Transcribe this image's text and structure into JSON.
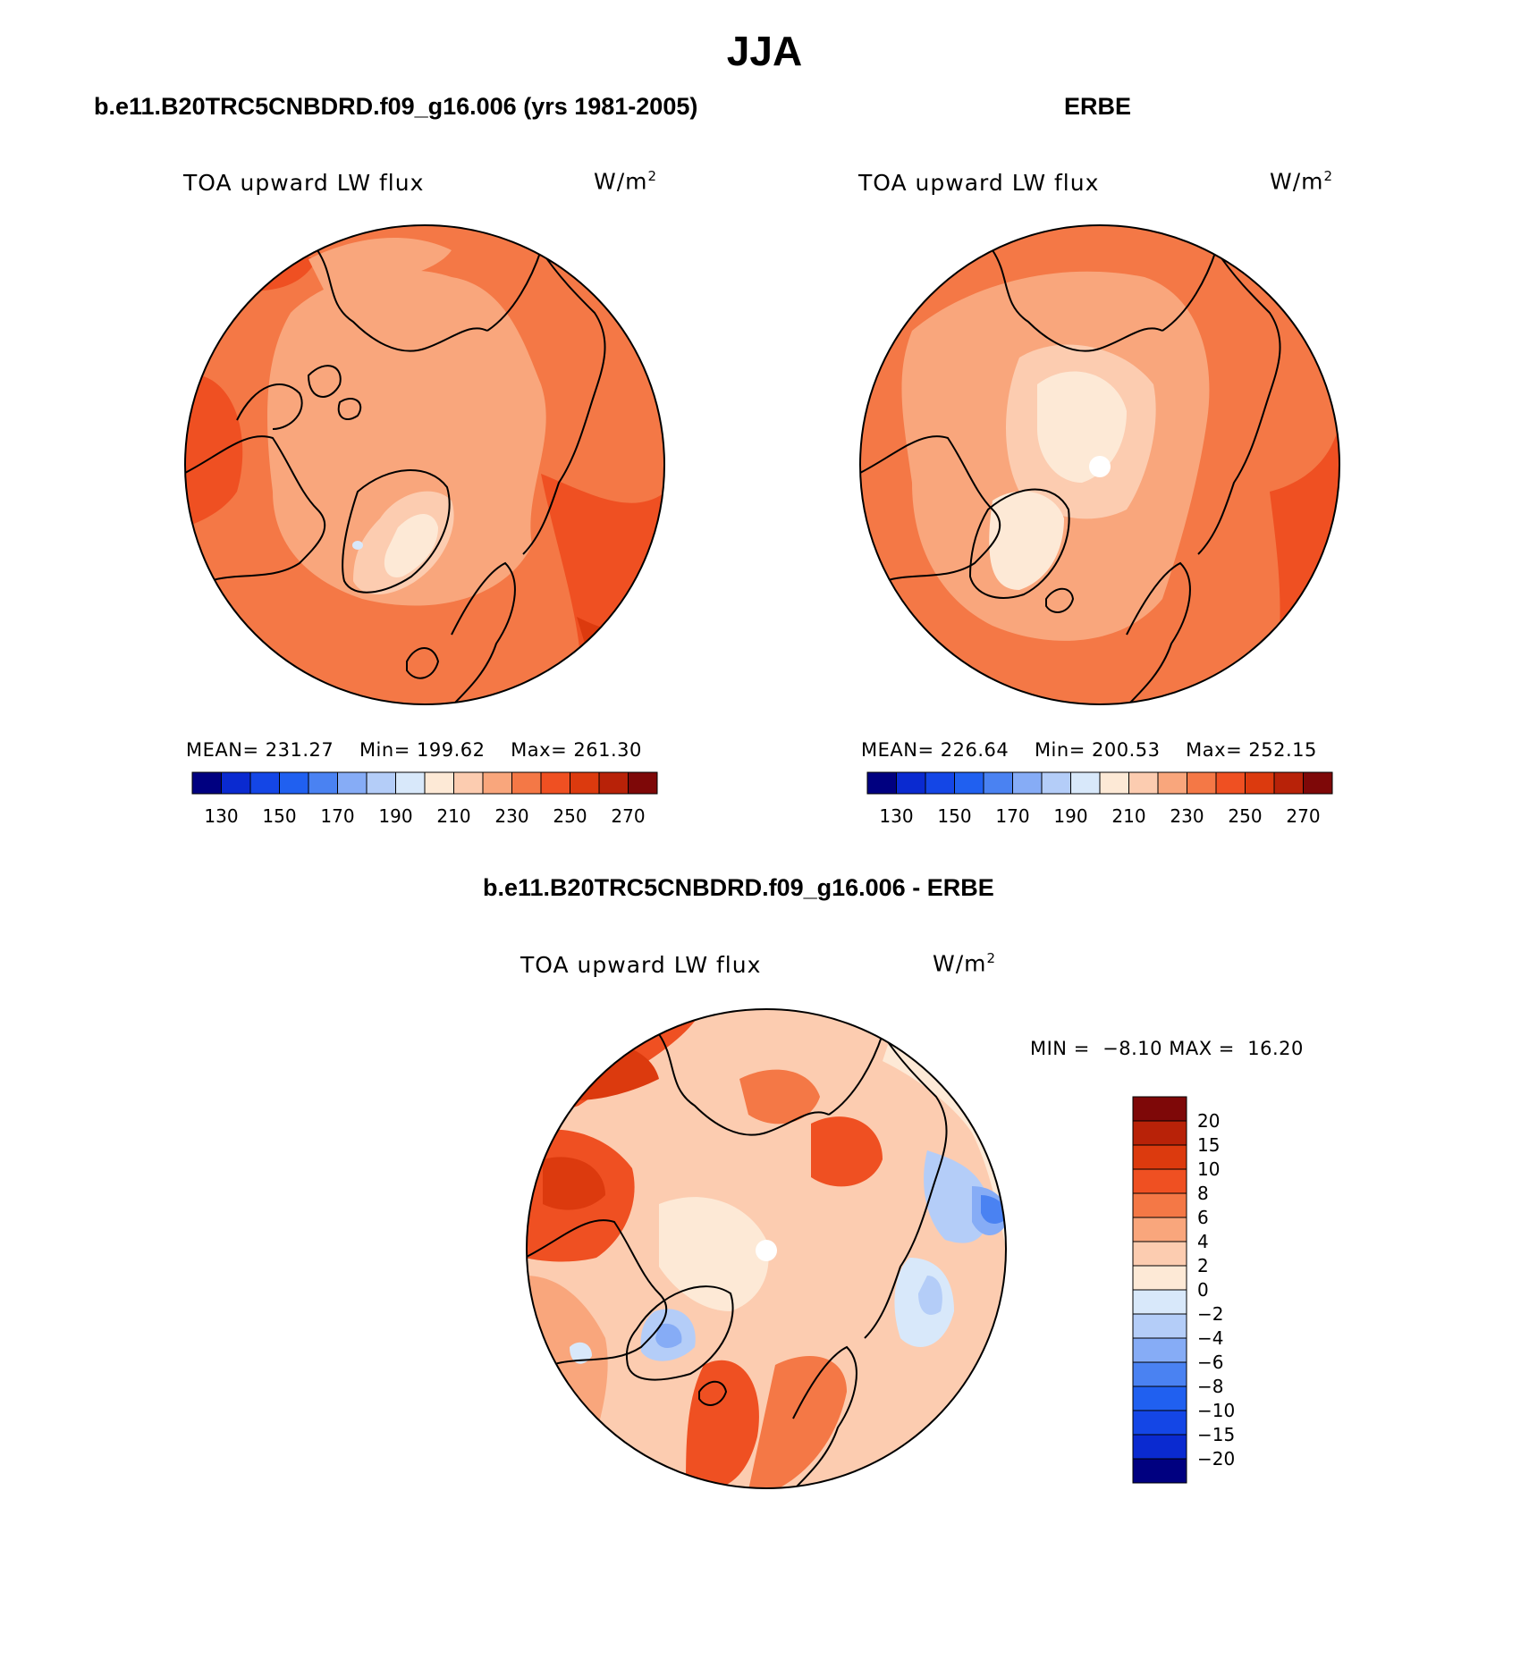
{
  "title": "JJA",
  "palette": [
    "#000080",
    "#0a2ad0",
    "#1446e6",
    "#2060f0",
    "#4a82f2",
    "#86acf6",
    "#b4cdf8",
    "#d8e8fa",
    "#fde9d6",
    "#fcccb0",
    "#f9a67c",
    "#f47846",
    "#ef5022",
    "#dc3a0e",
    "#b82208",
    "#7e0808"
  ],
  "panels": [
    {
      "title": "b.e11.B20TRC5CNBDRD.f09_g16.006 (yrs 1981-2005)",
      "variable_label": "TOA upward LW flux",
      "units": "W/m",
      "units_sup": "2",
      "stats": {
        "mean_label": "MEAN=",
        "mean": "231.27",
        "min_label": "Min=",
        "min": "199.62",
        "max_label": "Max=",
        "max": "261.30"
      },
      "colorbar_ticks": [
        "130",
        "150",
        "170",
        "190",
        "210",
        "230",
        "250",
        "270"
      ]
    },
    {
      "title": "ERBE",
      "variable_label": "TOA upward LW flux",
      "units": "W/m",
      "units_sup": "2",
      "stats": {
        "mean_label": "MEAN=",
        "mean": "226.64",
        "min_label": "Min=",
        "min": "200.53",
        "max_label": "Max=",
        "max": "252.15"
      },
      "colorbar_ticks": [
        "130",
        "150",
        "170",
        "190",
        "210",
        "230",
        "250",
        "270"
      ]
    }
  ],
  "diff": {
    "title": "b.e11.B20TRC5CNBDRD.f09_g16.006 - ERBE",
    "variable_label": "TOA upward LW flux",
    "units": "W/m",
    "units_sup": "2",
    "min_label": "MIN =",
    "min": "−8.10",
    "max_label": "MAX =",
    "max": "16.20",
    "colorbar_ticks": [
      "20",
      "15",
      "10",
      "8",
      "6",
      "4",
      "2",
      "0",
      "−2",
      "−4",
      "−6",
      "−8",
      "−10",
      "−15",
      "−20"
    ]
  }
}
